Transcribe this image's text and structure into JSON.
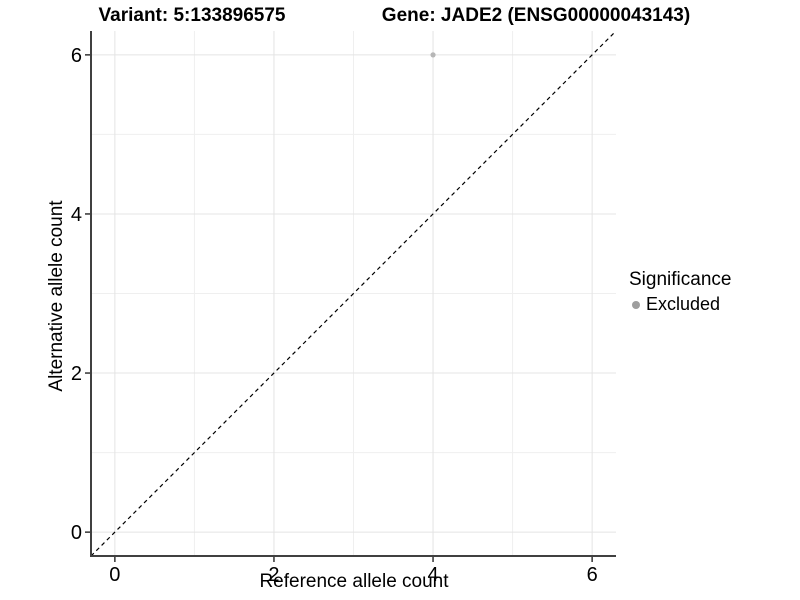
{
  "header": {
    "variant_title": "Variant: 5:133896575",
    "gene_title": "Gene: JADE2 (ENSG00000043143)"
  },
  "axes": {
    "x_label": "Reference allele count",
    "y_label": "Alternative allele count"
  },
  "legend": {
    "title": "Significance",
    "excluded_label": "Excluded"
  },
  "chart_data": {
    "type": "scatter",
    "titles": [
      "Variant: 5:133896575",
      "Gene: JADE2 (ENSG00000043143)"
    ],
    "xlabel": "Reference allele count",
    "ylabel": "Alternative allele count",
    "xlim": [
      -0.3,
      6.3
    ],
    "ylim": [
      -0.3,
      6.3
    ],
    "x_ticks": [
      0,
      2,
      4,
      6
    ],
    "y_ticks": [
      0,
      2,
      4,
      6
    ],
    "x_minor_ticks": [
      1,
      3,
      5
    ],
    "y_minor_ticks": [
      1,
      3,
      5
    ],
    "grid": "major+minor",
    "points": [
      {
        "x": 4,
        "y": 6,
        "series": "Excluded"
      }
    ],
    "reference_line": {
      "slope": 1,
      "intercept": 0,
      "style": "dashed",
      "color": "#000000"
    },
    "legend": {
      "title": "Significance",
      "position": "right",
      "entries": [
        {
          "label": "Excluded",
          "color": "#9E9E9E"
        }
      ]
    },
    "colors": {
      "excluded_point": "#B6B6B6",
      "grid_major": "#E4E4E4",
      "grid_minor": "#EFEFEF",
      "axis_line": "#404040",
      "tick_mark": "#333333",
      "text": "#000000"
    }
  }
}
